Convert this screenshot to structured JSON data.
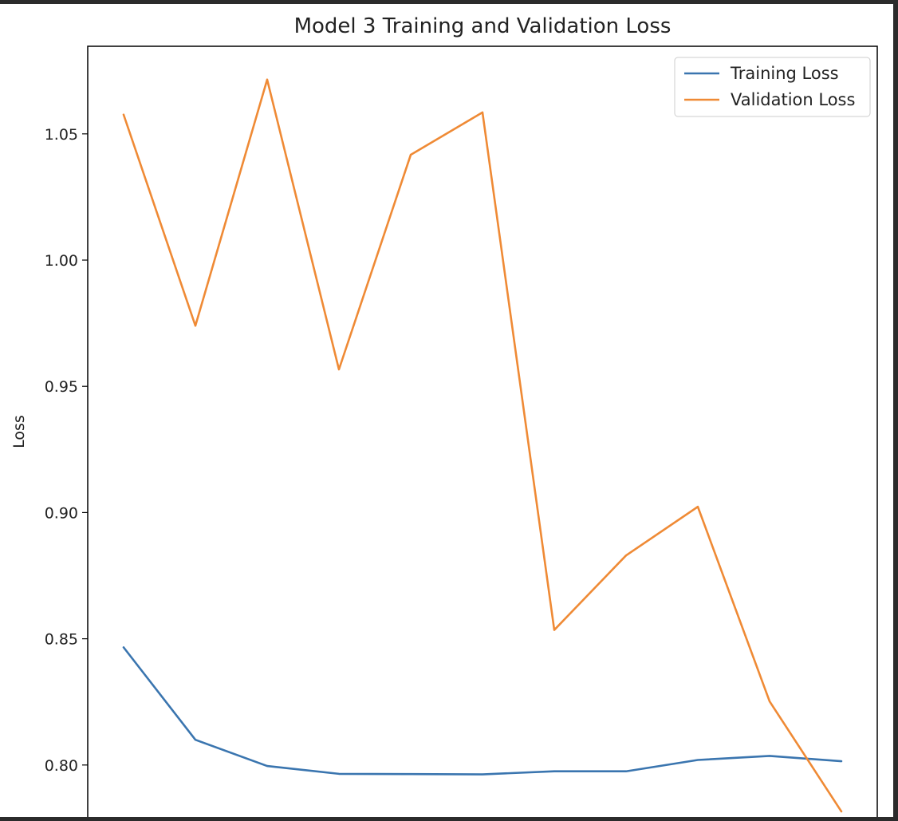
{
  "chart_data": {
    "type": "line",
    "title": "Model 3 Training and Validation Loss",
    "xlabel": "",
    "ylabel": "Loss",
    "x": [
      1,
      2,
      3,
      4,
      5,
      6,
      7,
      8,
      9,
      10,
      11
    ],
    "xlim": [
      0.5,
      11.5
    ],
    "ylim": [
      0.7794,
      1.0847
    ],
    "yticks": [
      0.8,
      0.85,
      0.9,
      0.95,
      1.0,
      1.05
    ],
    "ytick_labels": [
      "0.80",
      "0.85",
      "0.90",
      "0.95",
      "1.00",
      "1.05"
    ],
    "grid": false,
    "legend_position": "top-right",
    "series": [
      {
        "name": "Training Loss",
        "color": "#3a75af",
        "values": [
          0.8466,
          0.81,
          0.7996,
          0.7965,
          0.7964,
          0.7963,
          0.7975,
          0.7975,
          0.802,
          0.8036,
          0.8015
        ]
      },
      {
        "name": "Validation Loss",
        "color": "#ef8a35",
        "values": [
          1.0576,
          0.974,
          1.0715,
          0.9567,
          1.0417,
          1.0585,
          0.8535,
          0.883,
          0.9023,
          0.8252,
          0.7816
        ]
      }
    ]
  }
}
